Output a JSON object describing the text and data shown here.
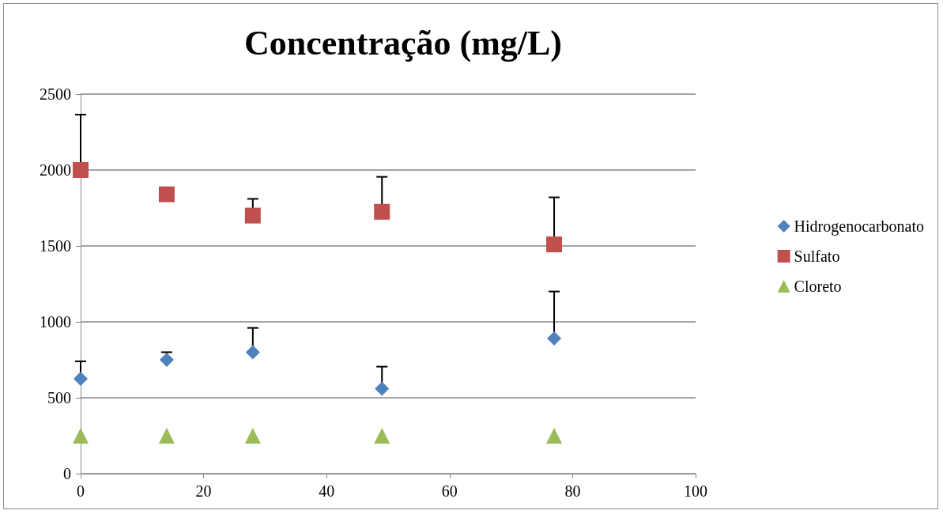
{
  "chart_data": {
    "type": "scatter",
    "title": "Concentração (mg/L)",
    "x": [
      0,
      14,
      28,
      49,
      77
    ],
    "series": [
      {
        "name": "Hidrogenocarbonato",
        "color": "#4f81bd",
        "marker": "diamond",
        "values": [
          625,
          750,
          800,
          560,
          890
        ],
        "errors": [
          [
            625,
            740
          ],
          [
            750,
            800
          ],
          [
            800,
            960
          ],
          [
            560,
            705
          ],
          [
            890,
            1200
          ]
        ]
      },
      {
        "name": "Sulfato",
        "color": "#c0504d",
        "marker": "square",
        "values": [
          2000,
          1840,
          1700,
          1725,
          1510
        ],
        "errors": [
          [
            2000,
            2365
          ],
          null,
          [
            1700,
            1810
          ],
          [
            1725,
            1955
          ],
          [
            1510,
            1820
          ]
        ]
      },
      {
        "name": "Cloreto",
        "color": "#9bbb59",
        "marker": "triangle",
        "values": [
          250,
          250,
          250,
          250,
          250
        ]
      }
    ],
    "xlim": [
      0,
      100
    ],
    "xticks": [
      0,
      20,
      40,
      60,
      80,
      100
    ],
    "ylim": [
      0,
      2500
    ],
    "yticks": [
      0,
      500,
      1000,
      1500,
      2000,
      2500
    ],
    "grid": "y",
    "legend": "right"
  }
}
